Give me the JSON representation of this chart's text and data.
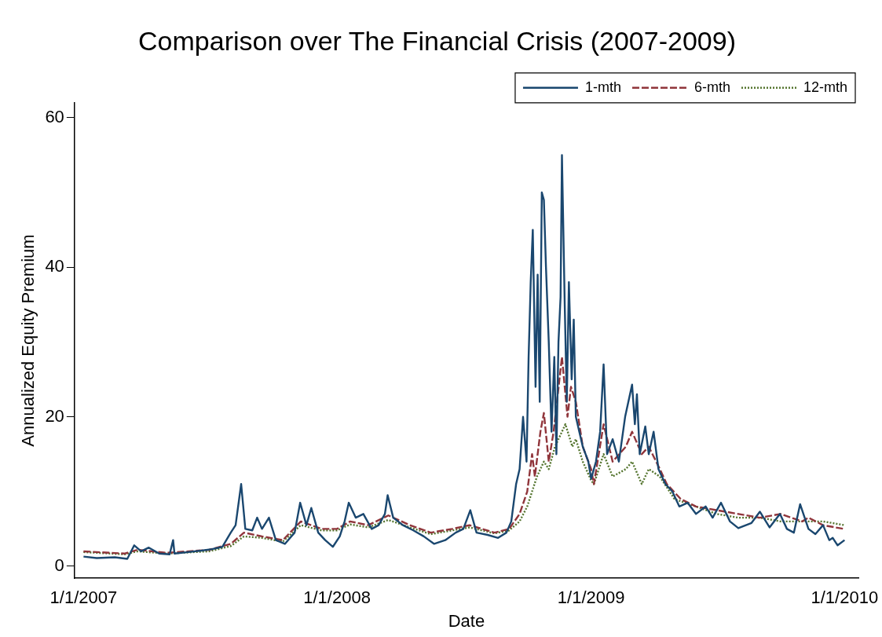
{
  "chart_data": {
    "type": "line",
    "title": "Comparison over The Financial Crisis (2007-2009)",
    "xlabel": "Date",
    "ylabel": "Annualized Equity Premium",
    "xlim": [
      "2006-12-19",
      "2010-01-21"
    ],
    "ylim": [
      -1.6,
      62
    ],
    "xticks": [
      {
        "value": "2007-01-01",
        "label": "1/1/2007"
      },
      {
        "value": "2008-01-01",
        "label": "1/1/2008"
      },
      {
        "value": "2009-01-01",
        "label": "1/1/2009"
      },
      {
        "value": "2010-01-01",
        "label": "1/1/2010"
      }
    ],
    "yticks": [
      0,
      20,
      40,
      60
    ],
    "grid": false,
    "legend": "top right",
    "marker": "none",
    "series": [
      {
        "name": "1-mth",
        "color": "#1a476f",
        "line_style": "solid",
        "x": [
          "2007-01-01",
          "2007-01-20",
          "2007-02-15",
          "2007-03-05",
          "2007-03-15",
          "2007-03-25",
          "2007-04-05",
          "2007-04-20",
          "2007-05-05",
          "2007-05-10",
          "2007-05-12",
          "2007-06-01",
          "2007-06-20",
          "2007-07-05",
          "2007-07-20",
          "2007-08-01",
          "2007-08-08",
          "2007-08-16",
          "2007-08-22",
          "2007-09-01",
          "2007-09-08",
          "2007-09-15",
          "2007-09-25",
          "2007-10-05",
          "2007-10-18",
          "2007-11-01",
          "2007-11-09",
          "2007-11-18",
          "2007-11-25",
          "2007-12-05",
          "2007-12-15",
          "2007-12-26",
          "2008-01-05",
          "2008-01-12",
          "2008-01-18",
          "2008-01-28",
          "2008-02-08",
          "2008-02-20",
          "2008-03-01",
          "2008-03-10",
          "2008-03-14",
          "2008-03-22",
          "2008-04-05",
          "2008-04-20",
          "2008-05-05",
          "2008-05-20",
          "2008-06-05",
          "2008-06-20",
          "2008-07-01",
          "2008-07-11",
          "2008-07-20",
          "2008-08-05",
          "2008-08-20",
          "2008-09-01",
          "2008-09-08",
          "2008-09-15",
          "2008-09-20",
          "2008-09-25",
          "2008-09-30",
          "2008-10-03",
          "2008-10-06",
          "2008-10-09",
          "2008-10-13",
          "2008-10-16",
          "2008-10-19",
          "2008-10-22",
          "2008-10-25",
          "2008-10-28",
          "2008-11-01",
          "2008-11-05",
          "2008-11-09",
          "2008-11-12",
          "2008-11-15",
          "2008-11-18",
          "2008-11-20",
          "2008-11-24",
          "2008-11-27",
          "2008-11-30",
          "2008-12-04",
          "2008-12-07",
          "2008-12-10",
          "2008-12-15",
          "2008-12-20",
          "2008-12-28",
          "2009-01-01",
          "2009-01-08",
          "2009-01-14",
          "2009-01-19",
          "2009-01-24",
          "2009-02-01",
          "2009-02-10",
          "2009-02-19",
          "2009-03-01",
          "2009-03-05",
          "2009-03-08",
          "2009-03-12",
          "2009-03-20",
          "2009-03-25",
          "2009-04-01",
          "2009-04-08",
          "2009-04-18",
          "2009-04-28",
          "2009-05-08",
          "2009-05-20",
          "2009-06-01",
          "2009-06-15",
          "2009-06-25",
          "2009-07-07",
          "2009-07-20",
          "2009-08-01",
          "2009-08-20",
          "2009-09-01",
          "2009-09-15",
          "2009-09-30",
          "2009-10-10",
          "2009-10-20",
          "2009-10-29",
          "2009-11-10",
          "2009-11-20",
          "2009-12-01",
          "2009-12-10",
          "2009-12-15",
          "2009-12-22",
          "2010-01-01"
        ],
        "values": [
          1.3,
          1.1,
          1.2,
          1.0,
          2.8,
          2.0,
          2.5,
          1.7,
          1.6,
          3.5,
          1.7,
          1.9,
          2.1,
          2.3,
          2.6,
          4.5,
          5.5,
          11,
          5,
          4.8,
          6.5,
          5,
          6.5,
          3.5,
          3,
          4.5,
          8.5,
          5.5,
          7.8,
          4.5,
          3.5,
          2.6,
          4,
          6,
          8.5,
          6.5,
          7,
          5,
          5.5,
          7,
          9.5,
          6.5,
          5.5,
          4.8,
          4,
          3,
          3.5,
          4.5,
          5,
          7.5,
          4.5,
          4.2,
          3.8,
          4.5,
          6,
          11,
          13,
          20,
          14,
          28,
          38,
          45,
          24,
          39,
          22,
          50,
          49,
          40,
          30,
          18,
          28,
          15,
          30,
          36,
          55,
          35,
          22,
          38,
          25,
          33,
          20,
          18,
          16,
          14,
          11.7,
          14,
          18,
          27,
          15,
          17,
          14,
          20,
          24.3,
          19,
          23,
          15,
          18.7,
          15,
          18,
          13,
          11,
          10,
          8,
          8.5,
          7,
          8,
          6.5,
          8.5,
          6,
          5.1,
          5.8,
          7.3,
          5.2,
          7,
          5,
          4.5,
          8.3,
          5,
          4.3,
          5.5,
          3.5,
          3.8,
          2.8,
          3.5
        ]
      },
      {
        "name": "6-mth",
        "color": "#90353b",
        "line_style": "dashed",
        "x": [
          "2007-01-01",
          "2007-03-01",
          "2007-03-20",
          "2007-05-01",
          "2007-07-01",
          "2007-08-01",
          "2007-08-20",
          "2007-09-15",
          "2007-10-15",
          "2007-11-10",
          "2007-12-10",
          "2008-01-01",
          "2008-01-20",
          "2008-02-15",
          "2008-03-15",
          "2008-04-15",
          "2008-05-15",
          "2008-06-15",
          "2008-07-10",
          "2008-08-15",
          "2008-09-05",
          "2008-09-20",
          "2008-10-01",
          "2008-10-08",
          "2008-10-12",
          "2008-10-20",
          "2008-10-25",
          "2008-11-01",
          "2008-11-08",
          "2008-11-20",
          "2008-11-28",
          "2008-12-03",
          "2008-12-10",
          "2008-12-20",
          "2009-01-01",
          "2009-01-05",
          "2009-01-19",
          "2009-02-01",
          "2009-02-20",
          "2009-03-01",
          "2009-03-15",
          "2009-03-25",
          "2009-04-10",
          "2009-04-20",
          "2009-05-10",
          "2009-06-01",
          "2009-07-01",
          "2009-08-01",
          "2009-09-01",
          "2009-10-01",
          "2009-11-01",
          "2009-11-10",
          "2009-12-01",
          "2009-12-31"
        ],
        "values": [
          2,
          1.7,
          2.2,
          1.8,
          2.2,
          3,
          4.5,
          4,
          3.5,
          6,
          5,
          5,
          6,
          5.5,
          6.8,
          5.5,
          4.5,
          5,
          5.5,
          4.5,
          5,
          7,
          10,
          15,
          12,
          18,
          20.5,
          14,
          18,
          28,
          20,
          24,
          22,
          16,
          13,
          11,
          19,
          14,
          16,
          18,
          15,
          16,
          13,
          11,
          9,
          8,
          7.5,
          7,
          6.5,
          7,
          6,
          6.5,
          5.5,
          5
        ]
      },
      {
        "name": "12-mth",
        "color": "#55752f",
        "line_style": "dotted",
        "x": [
          "2007-01-01",
          "2007-03-01",
          "2007-03-20",
          "2007-05-01",
          "2007-07-01",
          "2007-08-01",
          "2007-08-20",
          "2007-09-15",
          "2007-10-15",
          "2007-11-10",
          "2007-12-10",
          "2008-01-01",
          "2008-01-20",
          "2008-02-15",
          "2008-03-15",
          "2008-04-15",
          "2008-05-15",
          "2008-06-15",
          "2008-07-10",
          "2008-08-15",
          "2008-09-05",
          "2008-09-20",
          "2008-10-01",
          "2008-10-15",
          "2008-10-25",
          "2008-11-01",
          "2008-11-10",
          "2008-11-25",
          "2008-12-05",
          "2008-12-10",
          "2008-12-20",
          "2009-01-01",
          "2009-01-05",
          "2009-01-19",
          "2009-02-01",
          "2009-02-20",
          "2009-03-01",
          "2009-03-15",
          "2009-03-25",
          "2009-04-10",
          "2009-05-01",
          "2009-06-01",
          "2009-07-01",
          "2009-08-01",
          "2009-09-01",
          "2009-10-01",
          "2009-11-01",
          "2009-12-01",
          "2010-01-01"
        ],
        "values": [
          1.9,
          1.6,
          2,
          1.7,
          2,
          2.7,
          4,
          3.8,
          3.3,
          5.5,
          4.8,
          4.8,
          5.6,
          5.2,
          6.2,
          5.2,
          4.3,
          4.8,
          5.2,
          4.4,
          4.8,
          6,
          8,
          12,
          14,
          13,
          16,
          19,
          16,
          17,
          14,
          11.5,
          11,
          15,
          12,
          13,
          14,
          11,
          13,
          12,
          9,
          8,
          7,
          6.5,
          6.5,
          6,
          6,
          6,
          5.5
        ]
      }
    ]
  }
}
